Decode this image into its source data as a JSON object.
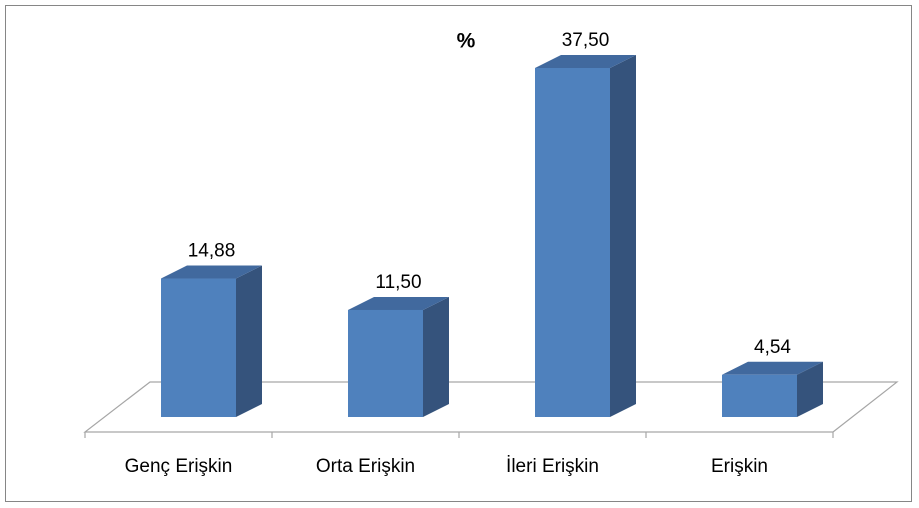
{
  "chart_data": {
    "type": "bar3d",
    "title": "%",
    "categories": [
      "Genç Erişkin",
      "Orta Erişkin",
      "İleri Erişkin",
      "Erişkin"
    ],
    "values": [
      14.88,
      11.5,
      37.5,
      4.54
    ],
    "value_labels": [
      "14,88",
      "11,50",
      "37,50",
      "4,54"
    ],
    "color": "#4f81bd"
  }
}
